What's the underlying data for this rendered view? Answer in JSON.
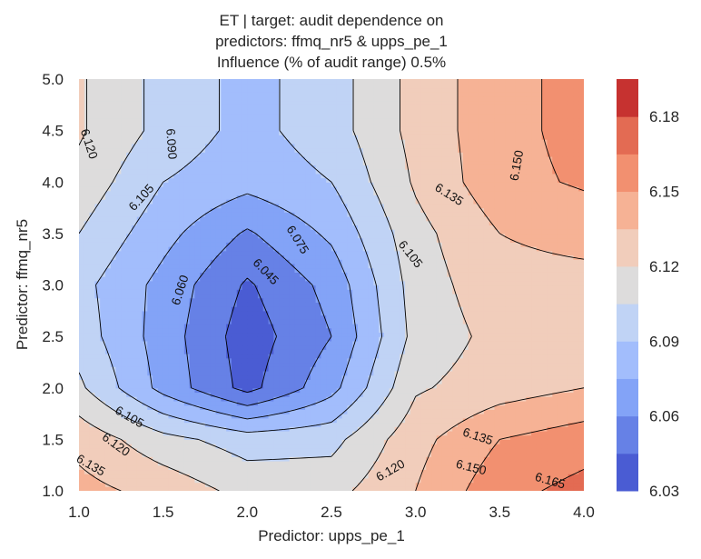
{
  "chart_data": {
    "type": "contour",
    "title": [
      "ET | target: audit dependence on",
      "predictors: ffmq_nr5 & upps_pe_1",
      "Influence (% of audit range) 0.5%"
    ],
    "xlabel": "Predictor: upps_pe_1",
    "ylabel": "Predictor: ffmq_nr5",
    "xlim": [
      1.0,
      4.0
    ],
    "ylim": [
      1.0,
      5.0
    ],
    "x_ticks": [
      "1.0",
      "1.5",
      "2.0",
      "2.5",
      "3.0",
      "3.5",
      "4.0"
    ],
    "y_ticks": [
      "1.0",
      "1.5",
      "2.0",
      "2.5",
      "3.0",
      "3.5",
      "4.0",
      "4.5",
      "5.0"
    ],
    "grid_x": [
      1.0,
      1.5,
      2.0,
      2.5,
      3.0,
      3.5,
      4.0
    ],
    "grid_y": [
      1.0,
      1.5,
      2.0,
      2.5,
      3.0,
      3.5,
      4.0,
      4.5,
      5.0
    ],
    "z": [
      [
        6.14,
        6.13,
        6.115,
        6.115,
        6.135,
        6.16,
        6.17
      ],
      [
        6.13,
        6.11,
        6.098,
        6.1,
        6.13,
        6.15,
        6.158
      ],
      [
        6.108,
        6.07,
        6.04,
        6.07,
        6.118,
        6.128,
        6.135
      ],
      [
        6.098,
        6.068,
        6.037,
        6.06,
        6.11,
        6.125,
        6.128
      ],
      [
        6.095,
        6.07,
        6.043,
        6.065,
        6.112,
        6.13,
        6.13
      ],
      [
        6.105,
        6.08,
        6.058,
        6.078,
        6.115,
        6.135,
        6.14
      ],
      [
        6.115,
        6.09,
        6.08,
        6.09,
        6.122,
        6.145,
        6.152
      ],
      [
        6.122,
        6.1,
        6.085,
        6.098,
        6.125,
        6.145,
        6.155
      ],
      [
        6.122,
        6.1,
        6.085,
        6.098,
        6.125,
        6.145,
        6.155
      ]
    ],
    "levels": [
      6.03,
      6.045,
      6.06,
      6.075,
      6.09,
      6.105,
      6.12,
      6.135,
      6.15,
      6.165,
      6.18,
      6.195
    ],
    "colors": [
      "#4a5cd3",
      "#6681e6",
      "#83a3f7",
      "#a2bdfc",
      "#c0d3f5",
      "#dddcdc",
      "#f1cdbb",
      "#f6b295",
      "#f29070",
      "#e36b53",
      "#c63230"
    ],
    "colorbar_ticks": [
      "6.03",
      "6.06",
      "6.09",
      "6.12",
      "6.15",
      "6.18"
    ],
    "contour_labels": [
      {
        "text": "6.120",
        "x": 1.06,
        "y": 4.37,
        "angle": 72
      },
      {
        "text": "6.090",
        "x": 1.55,
        "y": 4.37,
        "angle": 86
      },
      {
        "text": "6.105",
        "x": 1.37,
        "y": 3.85,
        "angle": -48
      },
      {
        "text": "6.060",
        "x": 1.6,
        "y": 2.95,
        "angle": -72
      },
      {
        "text": "6.045",
        "x": 2.11,
        "y": 3.13,
        "angle": 46
      },
      {
        "text": "6.075",
        "x": 2.3,
        "y": 3.44,
        "angle": 58
      },
      {
        "text": "6.105",
        "x": 2.97,
        "y": 3.3,
        "angle": 52
      },
      {
        "text": "6.135",
        "x": 3.2,
        "y": 3.88,
        "angle": 32
      },
      {
        "text": "6.150",
        "x": 3.6,
        "y": 4.16,
        "angle": -80
      },
      {
        "text": "6.105",
        "x": 1.3,
        "y": 1.72,
        "angle": 30
      },
      {
        "text": "6.120",
        "x": 1.22,
        "y": 1.45,
        "angle": 36
      },
      {
        "text": "6.135",
        "x": 1.07,
        "y": 1.25,
        "angle": 30
      },
      {
        "text": "6.120",
        "x": 2.85,
        "y": 1.2,
        "angle": -30
      },
      {
        "text": "6.135",
        "x": 3.37,
        "y": 1.53,
        "angle": 18
      },
      {
        "text": "6.150",
        "x": 3.33,
        "y": 1.23,
        "angle": 14
      },
      {
        "text": "6.165",
        "x": 3.8,
        "y": 1.1,
        "angle": 16
      }
    ]
  }
}
